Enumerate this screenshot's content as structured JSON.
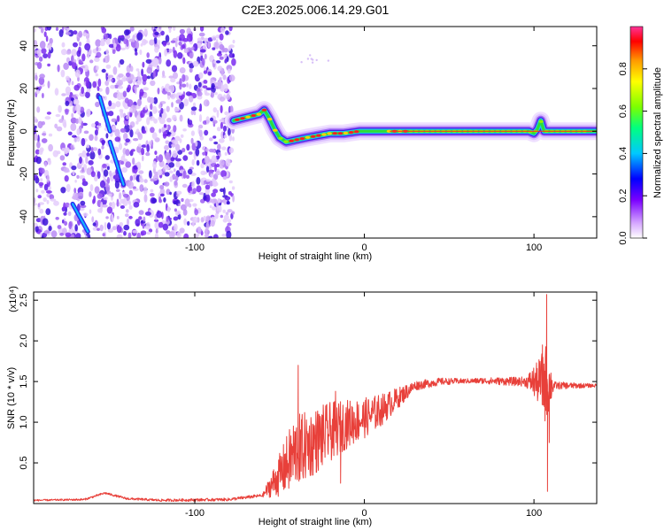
{
  "title": "C2E3.2025.006.14.29.G01",
  "colors": {
    "snr_line": "#e8403a",
    "background_speckle": "#8a3cf0",
    "ridge": "#2fdc3a",
    "ridge_peak": "#e02020"
  },
  "chart_data": [
    {
      "type": "heatmap",
      "name": "spectrogram",
      "xlabel": "Height of straight line (km)",
      "ylabel": "Frequency (Hz)",
      "xlim": [
        -195,
        137
      ],
      "ylim": [
        -50,
        49
      ],
      "xticks": [
        -100,
        0,
        100
      ],
      "xtick_labels": [
        "-100",
        "0",
        "100"
      ],
      "yticks": [
        -40,
        -20,
        0,
        20,
        40
      ],
      "ytick_labels": [
        "-40",
        "-20",
        "0",
        "20",
        "40"
      ],
      "colorbar": {
        "label": "Normalized spectral amplitude",
        "range": [
          0.0,
          1.0
        ],
        "ticks": [
          0.0,
          0.2,
          0.4,
          0.6,
          0.8
        ],
        "tick_labels": [
          "0.0",
          "0.2",
          "0.4",
          "0.6",
          "0.8"
        ],
        "colors": [
          "#ffffff",
          "#d6a8ff",
          "#7a00ff",
          "#0000ff",
          "#00c8ff",
          "#00ff80",
          "#7cff00",
          "#ffff00",
          "#ff9900",
          "#ff0000",
          "#ff3399"
        ]
      },
      "ridge": [
        {
          "x": -77,
          "y": 5
        },
        {
          "x": -72,
          "y": 6
        },
        {
          "x": -67,
          "y": 7
        },
        {
          "x": -62,
          "y": 8
        },
        {
          "x": -59,
          "y": 10
        },
        {
          "x": -56,
          "y": 6
        },
        {
          "x": -53,
          "y": 1
        },
        {
          "x": -50,
          "y": -3
        },
        {
          "x": -46,
          "y": -5
        },
        {
          "x": -40,
          "y": -4
        },
        {
          "x": -34,
          "y": -3
        },
        {
          "x": -27,
          "y": -2
        },
        {
          "x": -20,
          "y": -1
        },
        {
          "x": -12,
          "y": -1
        },
        {
          "x": -3,
          "y": 0
        },
        {
          "x": 8,
          "y": 0
        },
        {
          "x": 30,
          "y": 0
        },
        {
          "x": 60,
          "y": 0
        },
        {
          "x": 97,
          "y": 0
        },
        {
          "x": 100,
          "y": -1
        },
        {
          "x": 102,
          "y": 1
        },
        {
          "x": 104,
          "y": 5
        },
        {
          "x": 106,
          "y": 0
        },
        {
          "x": 137,
          "y": 0
        }
      ],
      "streaks": [
        {
          "x": [
            -172,
            -163
          ],
          "y": [
            -34,
            -47
          ]
        },
        {
          "x": [
            -150,
            -142
          ],
          "y": [
            -5,
            -25
          ]
        },
        {
          "x": [
            -156,
            -150
          ],
          "y": [
            16,
            0
          ]
        }
      ]
    },
    {
      "type": "line",
      "name": "snr",
      "xlabel": "Height of straight line (km)",
      "ylabel": "SNR (10 * v/v)",
      "scale_label": "(x10⁴)",
      "xlim": [
        -195,
        137
      ],
      "ylim": [
        0,
        2.6
      ],
      "xticks": [
        -100,
        0,
        100
      ],
      "xtick_labels": [
        "-100",
        "0",
        "100"
      ],
      "yticks": [
        0.5,
        1.0,
        1.5,
        2.0,
        2.5
      ],
      "ytick_labels": [
        "0.5",
        "1.0",
        "1.5",
        "2.0",
        "2.5"
      ],
      "envelope": [
        {
          "x": -195,
          "y": 0.04
        },
        {
          "x": -165,
          "y": 0.05
        },
        {
          "x": -153,
          "y": 0.13
        },
        {
          "x": -140,
          "y": 0.06
        },
        {
          "x": -120,
          "y": 0.04
        },
        {
          "x": -80,
          "y": 0.05
        },
        {
          "x": -60,
          "y": 0.1
        },
        {
          "x": -50,
          "y": 0.35
        },
        {
          "x": -40,
          "y": 0.65
        },
        {
          "x": -30,
          "y": 0.75
        },
        {
          "x": -20,
          "y": 0.88
        },
        {
          "x": -10,
          "y": 0.98
        },
        {
          "x": 0,
          "y": 1.05
        },
        {
          "x": 10,
          "y": 1.15
        },
        {
          "x": 20,
          "y": 1.3
        },
        {
          "x": 30,
          "y": 1.45
        },
        {
          "x": 45,
          "y": 1.5
        },
        {
          "x": 70,
          "y": 1.51
        },
        {
          "x": 90,
          "y": 1.5
        },
        {
          "x": 100,
          "y": 1.5
        },
        {
          "x": 112,
          "y": 1.45
        },
        {
          "x": 137,
          "y": 1.45
        }
      ],
      "noise_amplitude": [
        {
          "x": -195,
          "y": 0.01
        },
        {
          "x": -60,
          "y": 0.02
        },
        {
          "x": -55,
          "y": 0.15
        },
        {
          "x": -42,
          "y": 0.45
        },
        {
          "x": -25,
          "y": 0.4
        },
        {
          "x": -10,
          "y": 0.3
        },
        {
          "x": 10,
          "y": 0.2
        },
        {
          "x": 30,
          "y": 0.06
        },
        {
          "x": 60,
          "y": 0.03
        },
        {
          "x": 95,
          "y": 0.06
        },
        {
          "x": 102,
          "y": 0.25
        },
        {
          "x": 107,
          "y": 0.5
        },
        {
          "x": 112,
          "y": 0.05
        },
        {
          "x": 137,
          "y": 0.02
        }
      ],
      "spikes": [
        {
          "x": -39,
          "y": 1.7
        },
        {
          "x": -38,
          "y": 0.3
        },
        {
          "x": -17,
          "y": 1.38
        },
        {
          "x": -14,
          "y": 0.25
        },
        {
          "x": 105,
          "y": 1.95
        },
        {
          "x": 107.5,
          "y": 2.57
        },
        {
          "x": 108,
          "y": 0.15
        },
        {
          "x": 109,
          "y": 0.75
        }
      ]
    }
  ]
}
